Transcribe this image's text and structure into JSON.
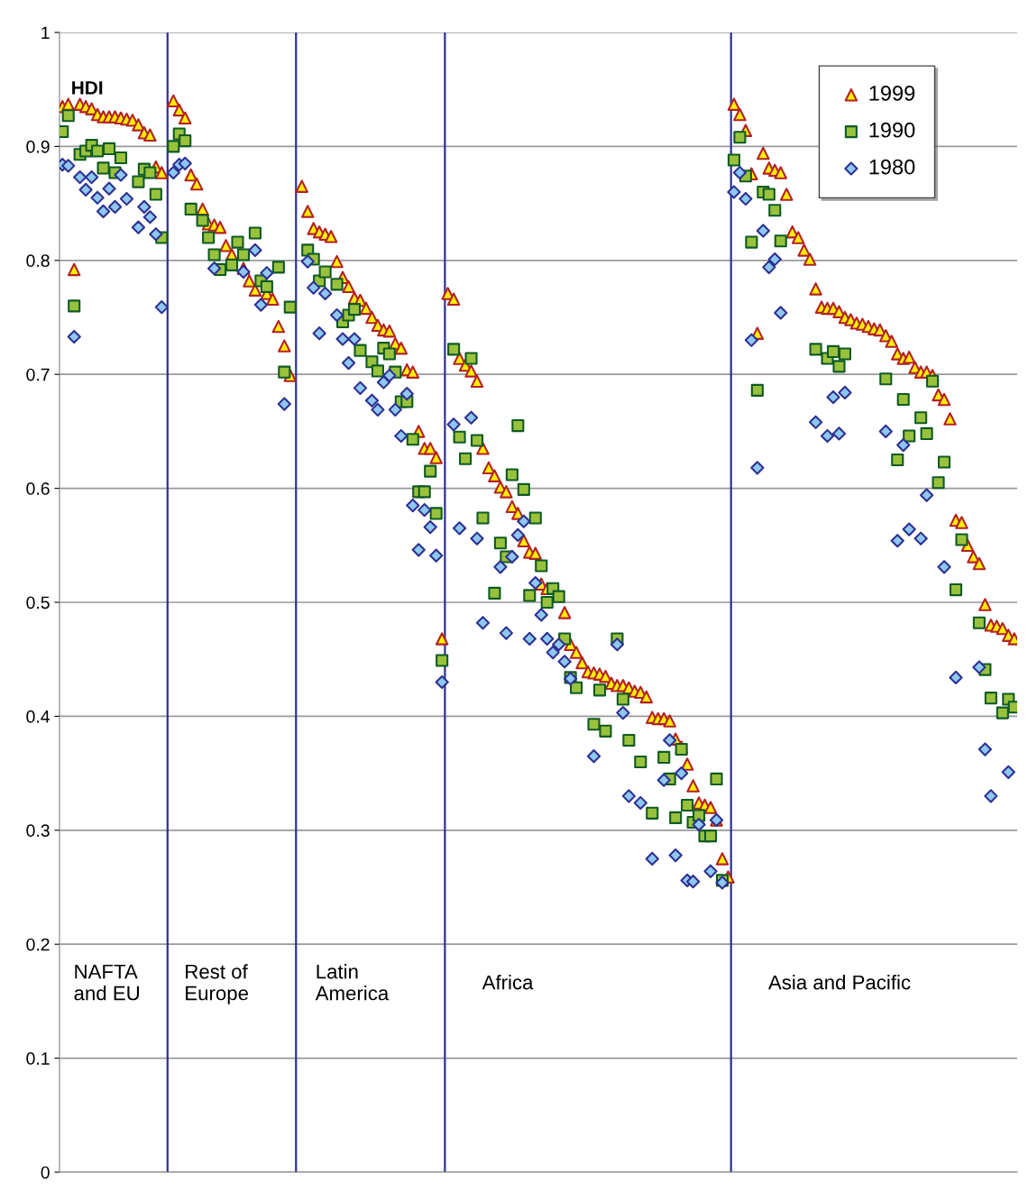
{
  "chart_data": {
    "type": "scatter",
    "ylabel": "HDI",
    "categories": [
      null,
      null,
      null,
      null,
      null,
      null,
      null,
      null,
      null,
      null,
      null,
      null,
      null,
      null,
      null,
      null,
      null,
      null,
      null,
      null,
      null,
      null,
      null,
      null,
      null,
      null,
      null,
      null,
      null,
      null,
      null,
      null,
      null,
      null,
      null,
      null,
      null,
      null,
      null,
      null,
      null,
      null,
      null,
      null,
      null,
      null,
      null,
      null,
      null,
      null,
      null,
      null,
      null,
      null,
      null,
      null,
      null,
      null,
      null,
      null,
      null,
      null,
      null,
      null,
      null,
      null,
      null,
      null,
      null,
      null,
      null,
      null,
      null,
      null,
      null,
      null,
      null,
      null,
      null,
      null,
      null,
      null,
      null,
      null,
      null,
      null,
      null,
      null,
      null,
      null,
      null,
      null,
      null,
      null,
      null,
      null,
      null,
      null,
      null,
      null,
      null,
      null,
      null,
      null,
      null,
      null,
      null,
      null,
      null,
      null,
      null,
      null,
      null,
      null,
      null,
      null,
      null,
      null,
      null,
      null,
      null,
      null,
      null,
      null,
      null,
      null,
      null,
      null,
      null,
      null,
      null,
      null,
      null,
      null,
      null,
      null,
      null,
      null,
      null,
      null,
      null,
      null,
      null,
      null,
      null,
      null,
      null,
      null,
      null,
      null,
      null,
      null,
      null,
      null,
      null,
      null,
      null,
      null,
      null,
      null,
      null,
      null,
      null,
      null
    ],
    "ylim": [
      0,
      1
    ],
    "yticks": [
      0,
      0.1,
      0.2,
      0.3,
      0.4,
      0.5,
      0.6,
      0.7,
      0.8,
      0.9,
      1
    ],
    "tick_labels": "y",
    "grid": "y",
    "legend": "top right",
    "annotations": [
      "NAFTA\nand EU",
      "Rest of\nEurope",
      "Latin\nAmerica",
      "Africa",
      "Asia and Pacific"
    ],
    "series": [
      {
        "name": "1999",
        "color": "#ffee00",
        "marker": "triangle",
        "values": [
          0.935,
          0.937,
          0.792,
          0.937,
          0.935,
          0.933,
          0.928,
          0.926,
          0.926,
          0.926,
          0.925,
          0.924,
          0.923,
          0.919,
          0.912,
          0.91,
          0.882,
          0.877,
          null,
          0.94,
          0.932,
          0.925,
          0.875,
          0.867,
          0.845,
          0.832,
          0.831,
          0.829,
          0.813,
          0.805,
          null,
          0.793,
          0.782,
          0.774,
          null,
          0.771,
          0.766,
          0.742,
          0.725,
          0.699,
          null,
          0.865,
          0.843,
          0.828,
          0.825,
          0.823,
          0.821,
          0.799,
          0.785,
          0.777,
          0.767,
          0.765,
          0.758,
          0.75,
          0.743,
          0.739,
          0.738,
          0.727,
          0.723,
          0.704,
          0.702,
          0.65,
          0.635,
          0.635,
          0.627,
          0.468,
          0.771,
          0.766,
          0.714,
          0.708,
          0.703,
          0.694,
          0.635,
          0.618,
          0.611,
          0.601,
          0.597,
          0.584,
          0.578,
          0.554,
          0.544,
          0.543,
          0.516,
          0.512,
          null,
          null,
          0.491,
          0.463,
          0.456,
          0.447,
          0.439,
          0.438,
          0.437,
          0.435,
          0.429,
          0.427,
          0.427,
          0.425,
          0.422,
          0.421,
          0.417,
          0.399,
          0.398,
          0.398,
          0.396,
          0.38,
          0.373,
          0.358,
          0.339,
          0.324,
          0.322,
          0.32,
          0.309,
          0.275,
          0.259,
          0.937,
          0.928,
          0.914,
          0.876,
          0.736,
          0.894,
          0.881,
          0.879,
          0.877,
          0.858,
          0.825,
          0.82,
          0.809,
          0.801,
          0.775,
          0.759,
          0.758,
          0.758,
          0.755,
          0.75,
          0.748,
          0.745,
          0.744,
          0.742,
          0.74,
          0.739,
          0.734,
          0.729,
          0.718,
          0.714,
          0.715,
          0.706,
          0.702,
          0.702,
          0.699,
          0.682,
          0.678,
          0.661,
          0.572,
          0.57,
          0.55,
          0.54,
          0.534,
          0.498,
          0.48,
          0.479,
          0.477,
          0.471,
          0.468
        ]
      },
      {
        "name": "1990",
        "color": "#99c23c",
        "marker": "square",
        "values": [
          0.913,
          0.927,
          0.76,
          0.893,
          0.896,
          0.901,
          0.896,
          0.881,
          0.898,
          0.877,
          0.89,
          null,
          null,
          0.869,
          0.88,
          0.877,
          0.858,
          0.82,
          null,
          0.9,
          0.911,
          0.905,
          0.845,
          null,
          0.835,
          0.82,
          0.805,
          0.792,
          null,
          0.796,
          0.816,
          0.805,
          null,
          0.824,
          0.782,
          0.777,
          null,
          0.794,
          0.702,
          0.759,
          null,
          null,
          0.809,
          0.801,
          0.782,
          0.79,
          null,
          0.779,
          0.746,
          0.752,
          0.757,
          0.721,
          null,
          0.711,
          0.703,
          0.723,
          0.718,
          0.702,
          0.676,
          0.676,
          0.643,
          0.597,
          0.597,
          0.615,
          0.578,
          0.449,
          null,
          0.722,
          0.645,
          0.626,
          0.714,
          0.642,
          0.574,
          null,
          0.508,
          0.552,
          0.54,
          0.612,
          0.655,
          0.599,
          0.506,
          0.574,
          0.532,
          0.5,
          0.512,
          0.505,
          0.468,
          0.434,
          0.425,
          null,
          null,
          0.393,
          0.423,
          0.387,
          null,
          0.468,
          0.415,
          0.379,
          null,
          0.36,
          null,
          0.315,
          null,
          0.364,
          0.345,
          0.311,
          0.371,
          0.322,
          0.307,
          0.313,
          0.295,
          0.295,
          0.345,
          0.256,
          null,
          0.888,
          0.908,
          0.874,
          0.816,
          0.686,
          0.86,
          0.858,
          0.844,
          0.817,
          null,
          null,
          null,
          null,
          null,
          0.722,
          null,
          0.714,
          0.72,
          0.707,
          0.718,
          null,
          null,
          null,
          null,
          null,
          null,
          0.696,
          null,
          0.625,
          0.678,
          0.646,
          null,
          0.662,
          0.648,
          0.694,
          0.605,
          0.623,
          null,
          0.511,
          0.555,
          null,
          null,
          0.482,
          0.441,
          0.416,
          null,
          0.403,
          0.415,
          0.408
        ]
      },
      {
        "name": "1980",
        "color": "#8ec8f0",
        "marker": "diamond",
        "values": [
          0.884,
          0.883,
          0.733,
          0.873,
          0.862,
          0.873,
          0.855,
          0.843,
          0.863,
          0.847,
          0.875,
          0.854,
          null,
          0.829,
          0.847,
          0.838,
          0.823,
          0.759,
          null,
          0.877,
          0.884,
          0.885,
          null,
          null,
          null,
          null,
          0.793,
          null,
          null,
          null,
          null,
          0.79,
          null,
          0.809,
          0.761,
          0.789,
          null,
          null,
          0.674,
          null,
          null,
          null,
          0.799,
          0.776,
          0.736,
          0.771,
          null,
          0.752,
          0.731,
          0.71,
          0.731,
          0.688,
          null,
          0.677,
          0.669,
          0.693,
          0.699,
          0.669,
          0.646,
          0.683,
          0.585,
          0.546,
          0.581,
          0.566,
          0.541,
          0.43,
          null,
          0.656,
          0.565,
          null,
          0.662,
          0.556,
          0.482,
          null,
          null,
          0.531,
          0.473,
          0.54,
          0.559,
          0.571,
          0.468,
          0.517,
          0.489,
          0.468,
          0.456,
          0.463,
          0.448,
          0.433,
          null,
          null,
          null,
          0.365,
          null,
          null,
          null,
          0.463,
          0.403,
          0.33,
          null,
          0.324,
          null,
          0.275,
          null,
          0.344,
          0.379,
          0.278,
          0.35,
          0.256,
          0.255,
          0.305,
          null,
          0.264,
          0.309,
          0.254,
          null,
          0.86,
          0.877,
          0.854,
          0.73,
          0.618,
          0.826,
          0.794,
          0.801,
          0.754,
          null,
          null,
          null,
          null,
          null,
          0.658,
          null,
          0.646,
          0.68,
          0.648,
          0.684,
          null,
          null,
          null,
          null,
          null,
          null,
          0.65,
          null,
          0.554,
          0.638,
          0.564,
          null,
          0.556,
          0.594,
          null,
          null,
          0.531,
          null,
          0.434,
          null,
          null,
          null,
          0.443,
          0.371,
          0.33,
          null,
          null,
          0.351,
          null
        ]
      }
    ]
  }
}
